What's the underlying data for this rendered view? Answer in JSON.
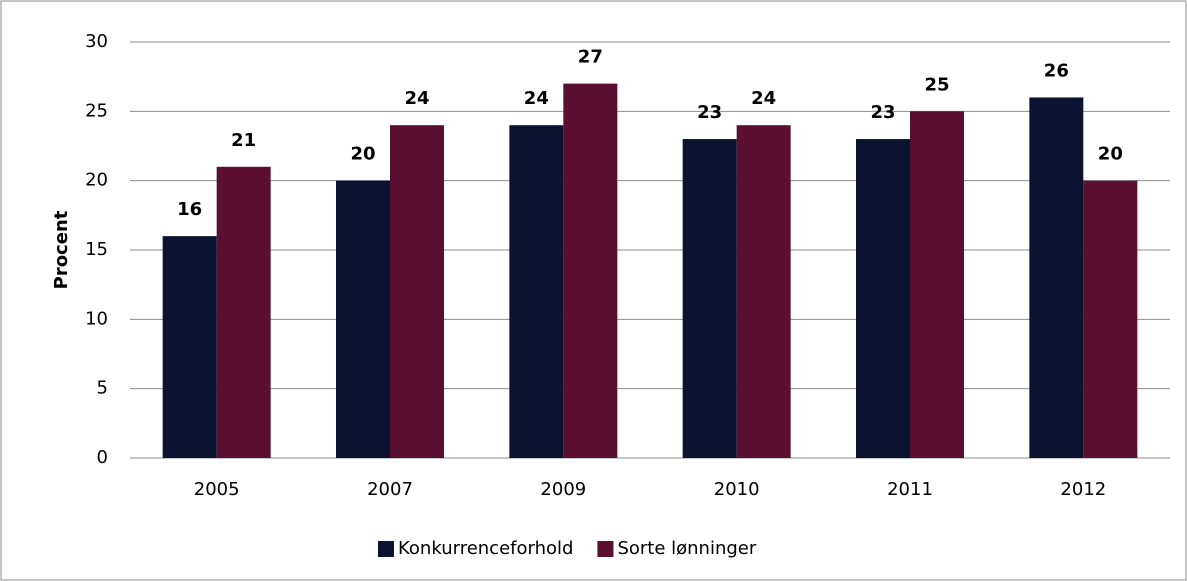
{
  "chart_data": {
    "type": "bar",
    "ylabel": "Procent",
    "categories": [
      "2005",
      "2007",
      "2009",
      "2010",
      "2011",
      "2012"
    ],
    "series": [
      {
        "name": "Konkurrenceforhold",
        "color": "#0c1331",
        "values": [
          16,
          20,
          24,
          23,
          23,
          26
        ]
      },
      {
        "name": "Sorte lønninger",
        "color": "#5a0e30",
        "values": [
          21,
          24,
          27,
          24,
          25,
          20
        ]
      }
    ],
    "ylim": [
      0,
      30
    ],
    "yticks": [
      0,
      5,
      10,
      15,
      20,
      25,
      30
    ],
    "grid": true,
    "legend": "bottom"
  }
}
